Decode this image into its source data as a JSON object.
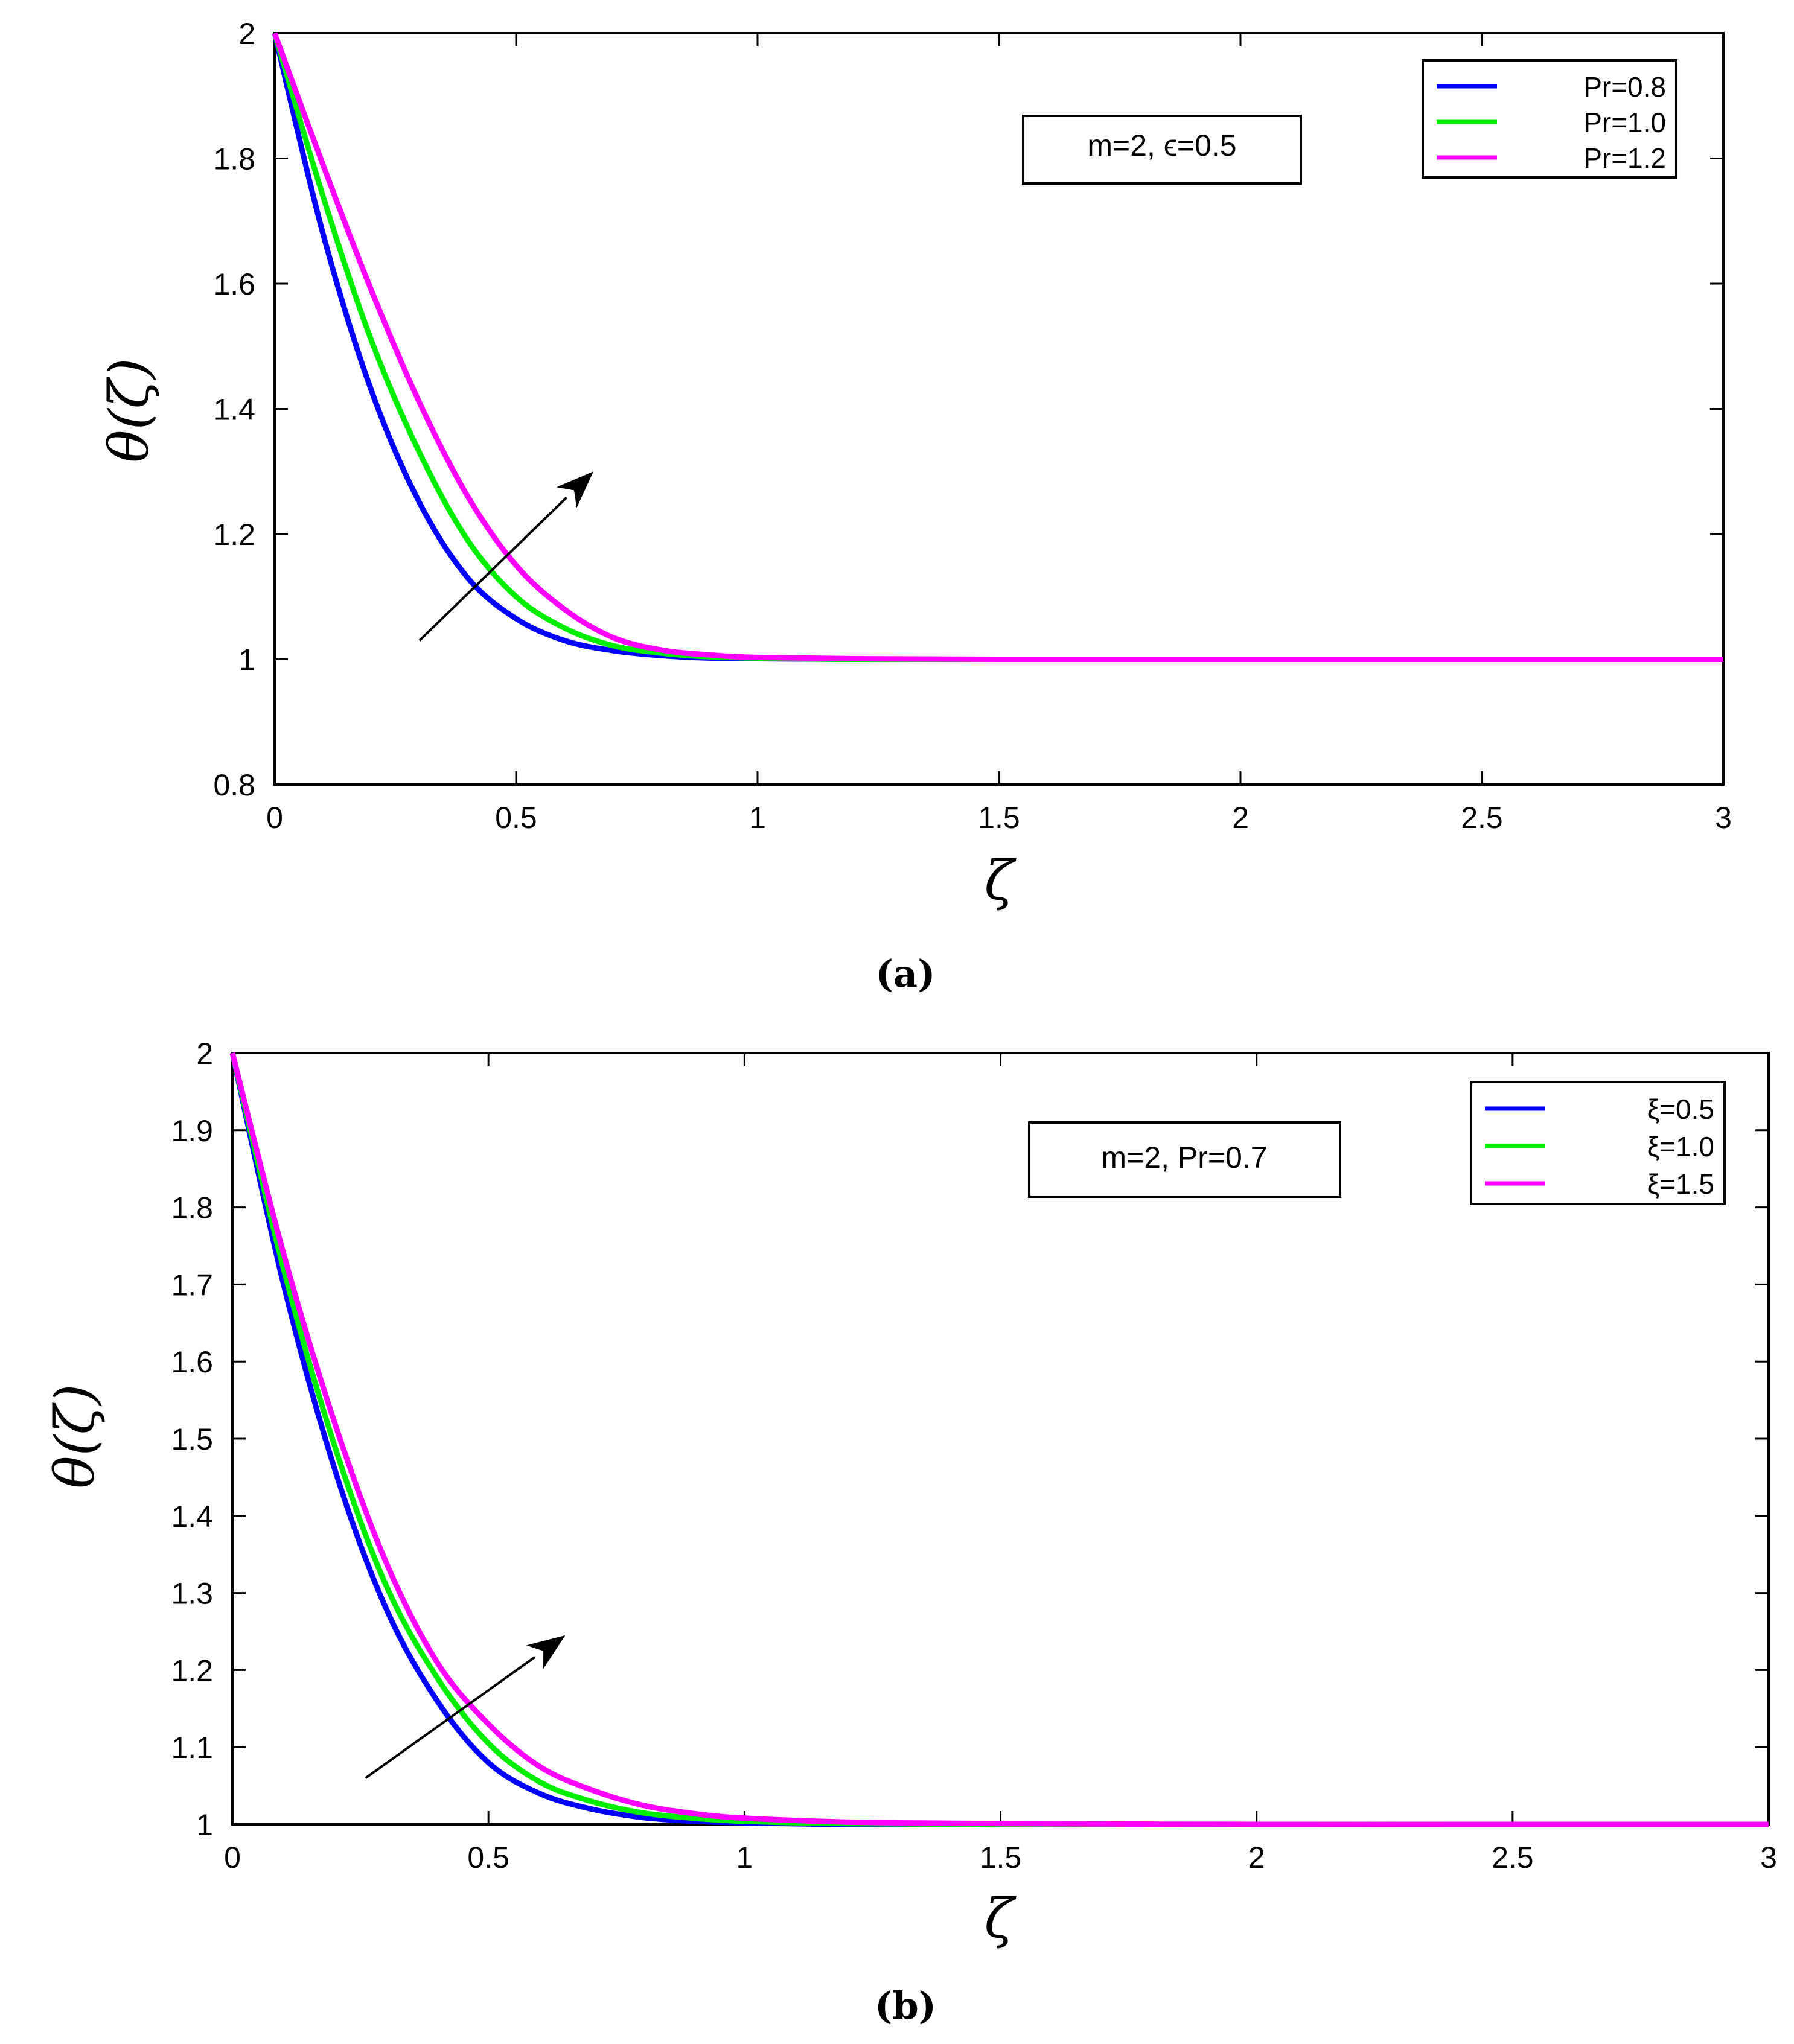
{
  "chart_data": [
    {
      "type": "line",
      "panel": "(a)",
      "xlabel": "ζ",
      "ylabel": "θ(ζ)",
      "xlim": [
        0,
        3
      ],
      "ylim": [
        0.8,
        2
      ],
      "xticks": [
        0,
        0.5,
        1,
        1.5,
        2,
        2.5,
        3
      ],
      "xtick_labels": [
        "0",
        "0.5",
        "1",
        "1.5",
        "2",
        "2.5",
        "3"
      ],
      "yticks": [
        0.8,
        1,
        1.2,
        1.4,
        1.6,
        1.8,
        2
      ],
      "ytick_labels": [
        "0.8",
        "1",
        "1.2",
        "1.4",
        "1.6",
        "1.8",
        "2"
      ],
      "annotation": "m=2, ϵ=0.5",
      "legend_position": "top-right",
      "arrow": {
        "from": [
          0.3,
          1.03
        ],
        "to": [
          0.66,
          1.3
        ]
      },
      "x": [
        0,
        0.1,
        0.2,
        0.3,
        0.4,
        0.5,
        0.6,
        0.7,
        0.8,
        0.9,
        1.0,
        1.2,
        1.5,
        2.0,
        2.5,
        3.0
      ],
      "series": [
        {
          "name": "Pr=0.8",
          "color": "#0000ff",
          "values": [
            2,
            1.68,
            1.43,
            1.25,
            1.13,
            1.065,
            1.03,
            1.014,
            1.006,
            1.002,
            1.001,
            1.0,
            1.0,
            1.0,
            1.0,
            1.0
          ]
        },
        {
          "name": "Pr=1.0",
          "color": "#00ee00",
          "values": [
            2,
            1.74,
            1.51,
            1.33,
            1.19,
            1.1,
            1.05,
            1.022,
            1.01,
            1.004,
            1.002,
            1.0,
            1.0,
            1.0,
            1.0,
            1.0
          ]
        },
        {
          "name": "Pr=1.2",
          "color": "#ff00ff",
          "values": [
            2,
            1.79,
            1.59,
            1.41,
            1.26,
            1.15,
            1.08,
            1.035,
            1.015,
            1.007,
            1.003,
            1.001,
            1.0,
            1.0,
            1.0,
            1.0
          ]
        }
      ]
    },
    {
      "type": "line",
      "panel": "(b)",
      "xlabel": "ζ",
      "ylabel": "θ(ζ)",
      "xlim": [
        0,
        3
      ],
      "ylim": [
        1,
        2
      ],
      "xticks": [
        0,
        0.5,
        1,
        1.5,
        2,
        2.5,
        3
      ],
      "xtick_labels": [
        "0",
        "0.5",
        "1",
        "1.5",
        "2",
        "2.5",
        "3"
      ],
      "yticks": [
        1,
        1.1,
        1.2,
        1.3,
        1.4,
        1.5,
        1.6,
        1.7,
        1.8,
        1.9,
        2
      ],
      "ytick_labels": [
        "1",
        "1.1",
        "1.2",
        "1.3",
        "1.4",
        "1.5",
        "1.6",
        "1.7",
        "1.8",
        "1.9",
        "2"
      ],
      "annotation": "m=2, Pr=0.7",
      "legend_position": "top-right",
      "arrow": {
        "from": [
          0.26,
          1.06
        ],
        "to": [
          0.65,
          1.245
        ]
      },
      "x": [
        0,
        0.1,
        0.2,
        0.3,
        0.4,
        0.5,
        0.6,
        0.7,
        0.8,
        0.9,
        1.0,
        1.2,
        1.5,
        2.0,
        2.5,
        3.0
      ],
      "series": [
        {
          "name": "ξ=0.5",
          "color": "#0000ff",
          "values": [
            2,
            1.7,
            1.46,
            1.28,
            1.16,
            1.08,
            1.04,
            1.02,
            1.009,
            1.004,
            1.002,
            1.0,
            1.0,
            1.0,
            1.0,
            1.0
          ]
        },
        {
          "name": "ξ=1.0",
          "color": "#00ee00",
          "values": [
            2,
            1.72,
            1.49,
            1.31,
            1.19,
            1.105,
            1.055,
            1.03,
            1.015,
            1.008,
            1.004,
            1.001,
            1.0,
            1.0,
            1.0,
            1.0
          ]
        },
        {
          "name": "ξ=1.5",
          "color": "#ff00ff",
          "values": [
            2,
            1.74,
            1.52,
            1.34,
            1.21,
            1.13,
            1.075,
            1.045,
            1.025,
            1.014,
            1.008,
            1.003,
            1.001,
            1.0,
            1.0,
            1.0
          ]
        }
      ]
    }
  ]
}
